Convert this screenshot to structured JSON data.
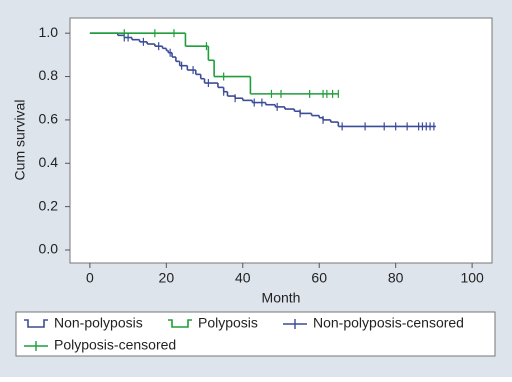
{
  "chart_data": {
    "type": "step",
    "x_label": "Month",
    "y_label": "Cum survival",
    "xlim": [
      -5.2,
      105.2
    ],
    "ylim": [
      -0.06,
      1.07
    ],
    "xticks": [
      0,
      20,
      40,
      60,
      80,
      100
    ],
    "yticks": [
      {
        "value": 0,
        "label": "0.0"
      },
      0.2,
      0.4,
      0.6,
      0.8,
      {
        "value": 1,
        "label": "1.0"
      }
    ],
    "series": [
      {
        "name": "Non-polyposis",
        "kind": "step",
        "color": "#3b4c98",
        "x": [
          0,
          7.3,
          9,
          11,
          13,
          15,
          17,
          19,
          20,
          20.5,
          21.5,
          22.5,
          23.5,
          25.5,
          27.7,
          29,
          30,
          33.5,
          35,
          36,
          38,
          40,
          42.5,
          46,
          48.5,
          51,
          53.5,
          55,
          58,
          60,
          61,
          63,
          65,
          90.5
        ],
        "values": [
          1,
          0.99,
          0.98,
          0.97,
          0.96,
          0.95,
          0.94,
          0.93,
          0.92,
          0.91,
          0.89,
          0.87,
          0.85,
          0.83,
          0.81,
          0.79,
          0.77,
          0.75,
          0.73,
          0.71,
          0.7,
          0.69,
          0.68,
          0.67,
          0.66,
          0.65,
          0.64,
          0.63,
          0.62,
          0.61,
          0.6,
          0.59,
          0.57,
          0.57
        ]
      },
      {
        "name": "Polyposis",
        "kind": "step",
        "color": "#1f9e3a",
        "x": [
          0,
          25,
          31,
          32.5,
          42,
          65
        ],
        "values": [
          1,
          0.94,
          0.875,
          0.8,
          0.72,
          0.72
        ]
      },
      {
        "name": "Non-polyposis-censored",
        "kind": "censor",
        "color": "#3b4c98",
        "x": [
          9,
          10,
          14,
          18,
          21,
          24,
          27,
          31,
          35,
          38,
          43,
          45,
          49,
          55,
          61,
          66,
          72,
          77,
          80,
          83,
          86,
          87,
          88,
          89,
          90
        ],
        "values": [
          0.98,
          0.98,
          0.96,
          0.94,
          0.91,
          0.85,
          0.83,
          0.77,
          0.73,
          0.7,
          0.68,
          0.68,
          0.66,
          0.63,
          0.6,
          0.57,
          0.57,
          0.57,
          0.57,
          0.57,
          0.57,
          0.57,
          0.57,
          0.57,
          0.57
        ]
      },
      {
        "name": "Polyposis-censored",
        "kind": "censor",
        "color": "#1f9e3a",
        "x": [
          9,
          17,
          22,
          30.5,
          35,
          47.5,
          50,
          57.5,
          61,
          62,
          63.5,
          65
        ],
        "values": [
          1,
          1,
          1,
          0.94,
          0.8,
          0.72,
          0.72,
          0.72,
          0.72,
          0.72,
          0.72,
          0.72
        ]
      }
    ]
  }
}
